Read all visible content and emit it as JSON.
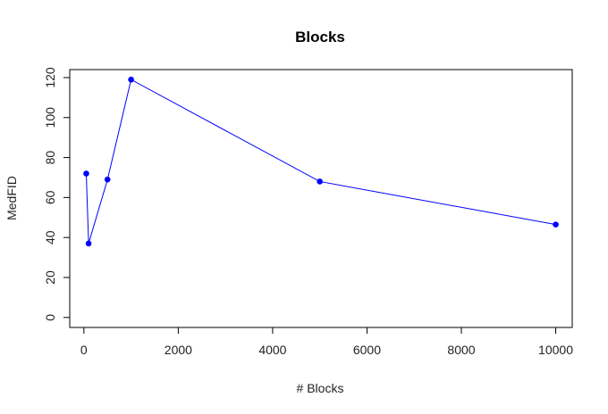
{
  "chart_data": {
    "type": "line",
    "title": "Blocks",
    "xlabel": "# Blocks",
    "ylabel": "MedFID",
    "x": [
      50,
      100,
      500,
      1000,
      5000,
      10000
    ],
    "series": [
      {
        "values": [
          72,
          37,
          69,
          119,
          68,
          46.5
        ]
      }
    ],
    "xlim": [
      -300,
      10350
    ],
    "ylim": [
      -5,
      124
    ],
    "xticks": [
      0,
      2000,
      4000,
      6000,
      8000,
      10000
    ],
    "yticks": [
      0,
      20,
      40,
      60,
      80,
      100,
      120
    ],
    "grid": false,
    "colors": {
      "series": "#0000ff",
      "axes": "#000000"
    }
  }
}
